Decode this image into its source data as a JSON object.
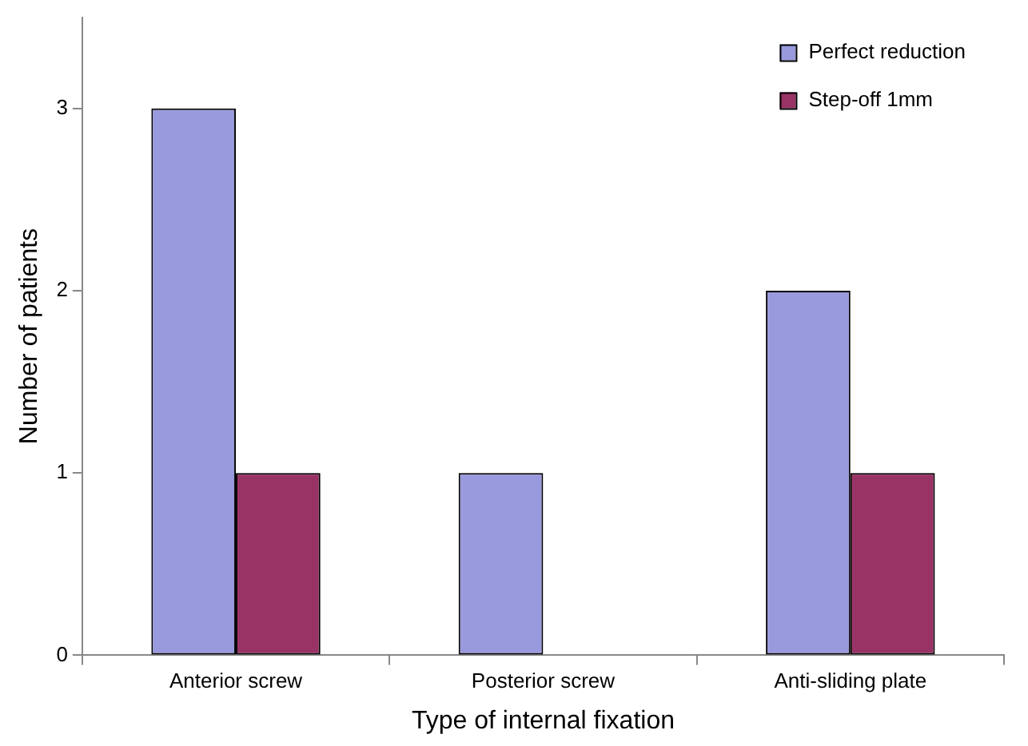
{
  "chart_data": {
    "type": "bar",
    "xlabel": "Type of internal fixation",
    "ylabel": "Number of patients",
    "categories": [
      "Anterior screw",
      "Posterior screw",
      "Anti-sliding plate"
    ],
    "series": [
      {
        "name": "Perfect reduction",
        "color": "#9999dd",
        "values": [
          3,
          1,
          2
        ]
      },
      {
        "name": "Step-off 1mm",
        "color": "#993366",
        "values": [
          1,
          0,
          1
        ]
      }
    ],
    "ylim": [
      0,
      3.5
    ],
    "yticks": [
      0,
      1,
      2,
      3
    ],
    "grid": false,
    "legend": "top right"
  }
}
